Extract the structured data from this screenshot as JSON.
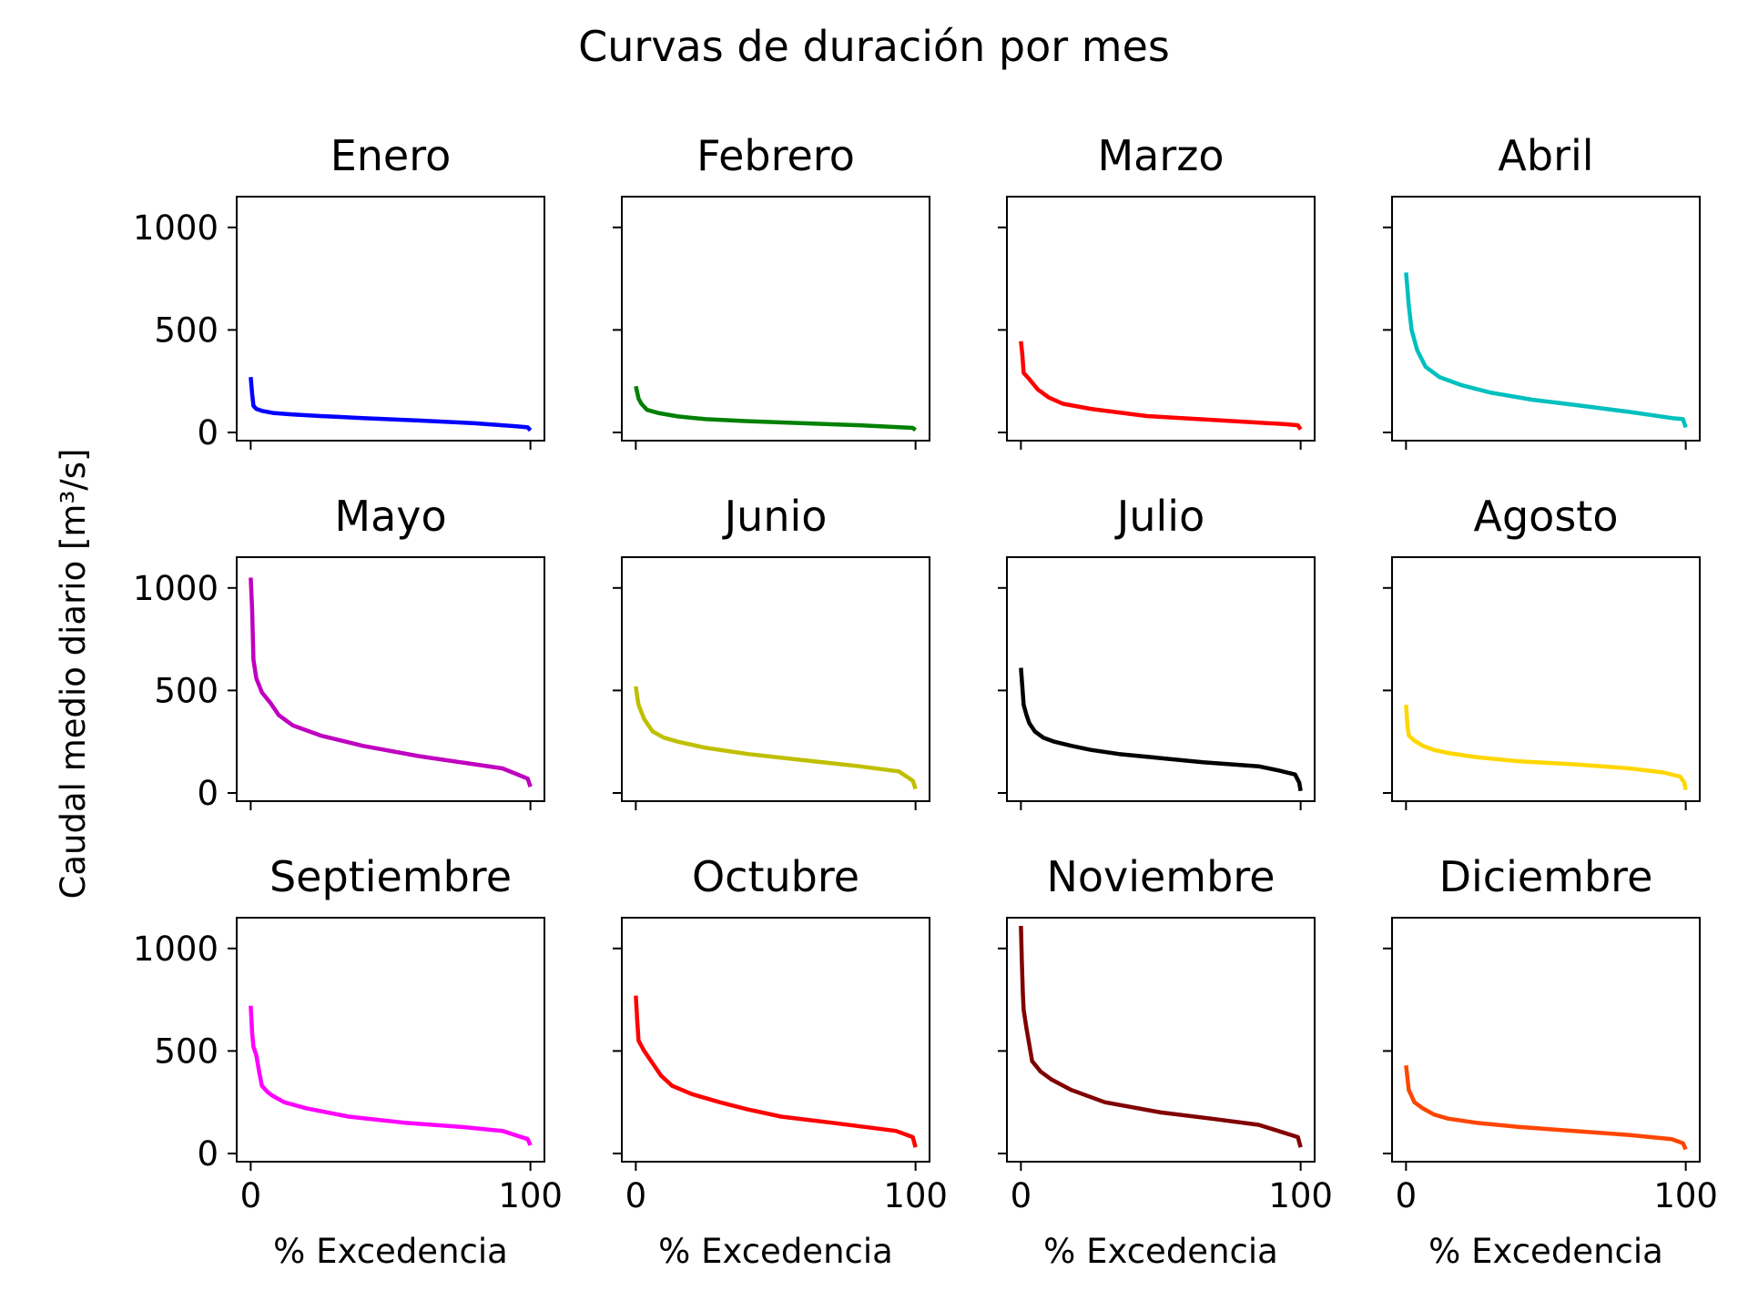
{
  "chart_data": {
    "type": "line",
    "title": "Curvas de duración por mes",
    "ylabel": "Caudal medio diario [m³/s]",
    "xlabel": "% Excedencia",
    "xlim": [
      -5,
      105
    ],
    "ylim": [
      -40,
      1150
    ],
    "xticks": [
      0,
      100
    ],
    "yticks": [
      0,
      500,
      1000
    ],
    "grid": false,
    "sharex": true,
    "sharey": true,
    "panels": [
      {
        "title": "Enero",
        "color": "#0000ff",
        "x": [
          0,
          0.5,
          1,
          2,
          4,
          8,
          15,
          25,
          40,
          60,
          80,
          95,
          99,
          100
        ],
        "y": [
          270,
          190,
          130,
          115,
          105,
          95,
          88,
          80,
          70,
          58,
          45,
          30,
          25,
          10
        ]
      },
      {
        "title": "Febrero",
        "color": "#008000",
        "x": [
          0,
          1,
          2,
          4,
          8,
          15,
          25,
          40,
          60,
          80,
          95,
          99,
          100
        ],
        "y": [
          225,
          165,
          140,
          110,
          95,
          78,
          65,
          55,
          45,
          35,
          25,
          22,
          12
        ]
      },
      {
        "title": "Marzo",
        "color": "#ff0000",
        "x": [
          0,
          0.5,
          1,
          3,
          6,
          10,
          15,
          25,
          45,
          70,
          95,
          99,
          100
        ],
        "y": [
          445,
          380,
          290,
          260,
          210,
          170,
          140,
          115,
          80,
          60,
          40,
          35,
          15
        ]
      },
      {
        "title": "Abril",
        "color": "#00bfbf",
        "x": [
          0,
          1,
          2,
          4,
          7,
          12,
          20,
          30,
          45,
          60,
          80,
          95,
          99,
          100
        ],
        "y": [
          780,
          620,
          500,
          400,
          320,
          270,
          230,
          195,
          160,
          135,
          100,
          70,
          65,
          25
        ]
      },
      {
        "title": "Mayo",
        "color": "#bf00bf",
        "x": [
          0,
          0.5,
          1,
          2,
          4,
          7,
          10,
          15,
          25,
          40,
          60,
          80,
          90,
          99,
          100
        ],
        "y": [
          1050,
          900,
          650,
          560,
          490,
          440,
          380,
          330,
          280,
          230,
          180,
          140,
          120,
          70,
          30
        ]
      },
      {
        "title": "Junio",
        "color": "#bfbf00",
        "x": [
          0,
          0.5,
          1,
          3,
          6,
          10,
          15,
          25,
          40,
          60,
          80,
          94,
          99,
          100
        ],
        "y": [
          520,
          470,
          430,
          360,
          300,
          270,
          250,
          220,
          190,
          160,
          130,
          105,
          60,
          20
        ]
      },
      {
        "title": "Julio",
        "color": "#000000",
        "x": [
          0,
          0.5,
          1,
          2,
          3,
          5,
          8,
          12,
          18,
          25,
          35,
          50,
          65,
          85,
          92,
          98,
          99.5,
          100
        ],
        "y": [
          610,
          520,
          430,
          380,
          340,
          300,
          270,
          250,
          230,
          210,
          190,
          170,
          150,
          130,
          110,
          90,
          50,
          10
        ]
      },
      {
        "title": "Agosto",
        "color": "#ffd700",
        "x": [
          0,
          0.5,
          1,
          3,
          6,
          10,
          15,
          25,
          40,
          60,
          80,
          92,
          98,
          99.5,
          100
        ],
        "y": [
          430,
          330,
          280,
          255,
          230,
          210,
          195,
          175,
          155,
          140,
          120,
          100,
          80,
          50,
          15
        ]
      },
      {
        "title": "Septiembre",
        "color": "#ff00ff",
        "x": [
          0,
          0.5,
          1,
          2,
          3,
          4,
          6,
          8,
          12,
          20,
          35,
          55,
          75,
          90,
          99,
          100
        ],
        "y": [
          720,
          590,
          520,
          480,
          400,
          330,
          300,
          280,
          250,
          220,
          180,
          150,
          130,
          110,
          70,
          40
        ]
      },
      {
        "title": "Octubre",
        "color": "#ff0000",
        "x": [
          0,
          0.5,
          1,
          3,
          6,
          9,
          13,
          20,
          30,
          40,
          52,
          70,
          93,
          99,
          100
        ],
        "y": [
          770,
          650,
          550,
          500,
          440,
          380,
          330,
          290,
          250,
          215,
          180,
          150,
          110,
          80,
          30
        ]
      },
      {
        "title": "Noviembre",
        "color": "#800000",
        "x": [
          0,
          0.3,
          0.7,
          1,
          2,
          4,
          7,
          11,
          18,
          30,
          50,
          68,
          85,
          99,
          100
        ],
        "y": [
          1110,
          950,
          780,
          700,
          610,
          450,
          400,
          360,
          310,
          250,
          200,
          170,
          140,
          80,
          30
        ]
      },
      {
        "title": "Diciembre",
        "color": "#ff4500",
        "x": [
          0,
          0.5,
          1,
          2,
          3,
          6,
          10,
          15,
          25,
          40,
          60,
          80,
          95,
          99,
          100
        ],
        "y": [
          430,
          370,
          310,
          280,
          250,
          220,
          190,
          170,
          150,
          130,
          110,
          90,
          70,
          50,
          20
        ]
      }
    ]
  }
}
